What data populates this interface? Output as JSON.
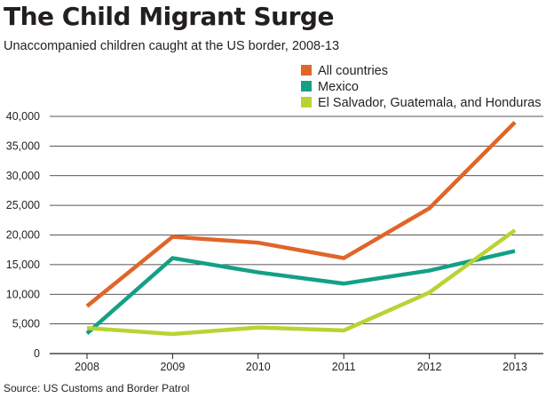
{
  "header": {
    "title": "The Child Migrant Surge",
    "subtitle": "Unaccompanied children caught at the US border, 2008-13"
  },
  "footer": {
    "source": "Source: US Customs and Border Patrol"
  },
  "chart_data": {
    "type": "line",
    "x": [
      "2008",
      "2009",
      "2010",
      "2011",
      "2012",
      "2013"
    ],
    "series": [
      {
        "name": "All countries",
        "color": "#e0652a",
        "values": [
          8000,
          19700,
          18700,
          16100,
          24500,
          39000
        ]
      },
      {
        "name": "Mexico",
        "color": "#13a085",
        "values": [
          3400,
          16100,
          13700,
          11800,
          14000,
          17300
        ]
      },
      {
        "name": "El Salvador, Guatemala, and Honduras",
        "color": "#b9d334",
        "values": [
          4300,
          3300,
          4400,
          3900,
          10300,
          20800
        ]
      }
    ],
    "yticks": [
      "0",
      "5,000",
      "10,000",
      "15,000",
      "20,000",
      "25,000",
      "30,000",
      "35,000",
      "40,000"
    ],
    "ylim": [
      0,
      40000
    ],
    "grid": true,
    "legend_position": "top-right"
  }
}
